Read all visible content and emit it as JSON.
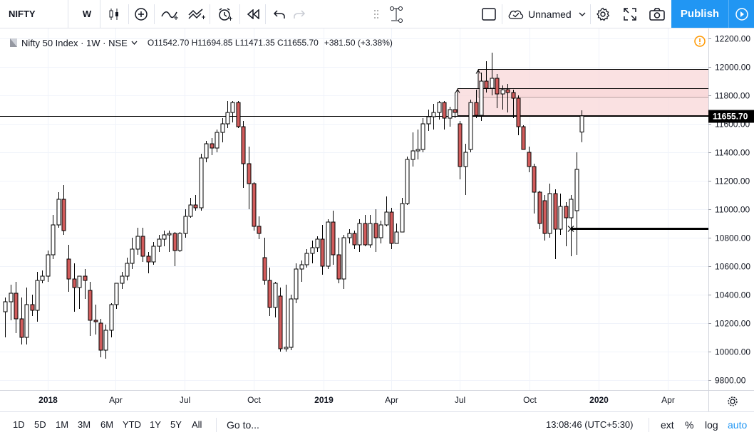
{
  "toolbar": {
    "symbol": "NIFTY",
    "interval": "W",
    "icons": [
      "candles-icon",
      "add-indicator-icon",
      "indicators-icon",
      "financials-icon",
      "alert-icon",
      "replay-icon",
      "undo-icon",
      "redo-icon",
      "drag-handle-icon",
      "drawing-tool-icon",
      "layout-icon",
      "cloud-icon",
      "dropdown-icon",
      "settings-icon",
      "fullscreen-icon",
      "camera-icon",
      "publish-arrow-icon"
    ],
    "layout_name": "Unnamed",
    "publish_label": "Publish"
  },
  "legend": {
    "title": "Nifty 50 Index · 1W · NSE",
    "ohlc": "O11542.70 H11694.85 L11471.35 C11655.70",
    "change": "+381.50 (+3.38%)",
    "warning_icon": "warning-icon"
  },
  "chart_data": {
    "type": "candlestick",
    "symbol": "Nifty 50 Index",
    "interval": "1W",
    "exchange": "NSE",
    "y_ticks": [
      12200,
      12000,
      11800,
      11600,
      11400,
      11200,
      11000,
      10800,
      10600,
      10400,
      10200,
      10000,
      9800
    ],
    "y_tick_labels": [
      "12200.00",
      "12000.00",
      "11800.00",
      "11600.00",
      "11400.00",
      "11200.00",
      "11000.00",
      "10800.00",
      "10600.00",
      "10400.00",
      "10200.00",
      "10000.00",
      "9800.00"
    ],
    "ylim": [
      9730,
      12270
    ],
    "x_tick_labels": [
      "2018",
      "Apr",
      "Jul",
      "Oct",
      "2019",
      "Apr",
      "Jul",
      "Oct",
      "2020",
      "Apr"
    ],
    "x_tick_dates": [
      "2018-01-01",
      "2018-04-01",
      "2018-07-01",
      "2018-10-01",
      "2019-01-01",
      "2019-04-01",
      "2019-07-01",
      "2019-10-01",
      "2020-01-01",
      "2020-04-01"
    ],
    "xlim": [
      "2017-10-30",
      "2020-05-25"
    ],
    "last_price": 11655.7,
    "last_price_label": "11655.70",
    "up_color": "#ffffff",
    "down_color": "#d15b5b",
    "wick_color": "#000000",
    "grid": true,
    "candles": [
      {
        "o": 10280,
        "h": 10380,
        "l": 10100,
        "c": 10350
      },
      {
        "o": 10350,
        "h": 10470,
        "l": 10220,
        "c": 10410
      },
      {
        "o": 10410,
        "h": 10490,
        "l": 10130,
        "c": 10230
      },
      {
        "o": 10230,
        "h": 10380,
        "l": 10050,
        "c": 10100
      },
      {
        "o": 10100,
        "h": 10450,
        "l": 10050,
        "c": 10330
      },
      {
        "o": 10330,
        "h": 10400,
        "l": 10250,
        "c": 10290
      },
      {
        "o": 10290,
        "h": 10560,
        "l": 10210,
        "c": 10500
      },
      {
        "o": 10500,
        "h": 10570,
        "l": 10480,
        "c": 10530
      },
      {
        "o": 10530,
        "h": 10710,
        "l": 10490,
        "c": 10680
      },
      {
        "o": 10680,
        "h": 10960,
        "l": 10650,
        "c": 10890
      },
      {
        "o": 10890,
        "h": 11120,
        "l": 10870,
        "c": 11070
      },
      {
        "o": 11070,
        "h": 11170,
        "l": 10820,
        "c": 10850
      },
      {
        "o": 10650,
        "h": 10750,
        "l": 10420,
        "c": 10510
      },
      {
        "o": 10510,
        "h": 10620,
        "l": 10280,
        "c": 10450
      },
      {
        "o": 10450,
        "h": 10530,
        "l": 10300,
        "c": 10530
      },
      {
        "o": 10530,
        "h": 10580,
        "l": 10370,
        "c": 10500
      },
      {
        "o": 10430,
        "h": 10490,
        "l": 10110,
        "c": 10220
      },
      {
        "o": 10220,
        "h": 10330,
        "l": 10120,
        "c": 10210
      },
      {
        "o": 10200,
        "h": 10230,
        "l": 9960,
        "c": 10010
      },
      {
        "o": 10010,
        "h": 10190,
        "l": 9950,
        "c": 10150
      },
      {
        "o": 10150,
        "h": 10340,
        "l": 10100,
        "c": 10330
      },
      {
        "o": 10330,
        "h": 10480,
        "l": 10300,
        "c": 10480
      },
      {
        "o": 10480,
        "h": 10560,
        "l": 10440,
        "c": 10530
      },
      {
        "o": 10530,
        "h": 10660,
        "l": 10500,
        "c": 10620
      },
      {
        "o": 10620,
        "h": 10800,
        "l": 10580,
        "c": 10720
      },
      {
        "o": 10720,
        "h": 10870,
        "l": 10680,
        "c": 10810
      },
      {
        "o": 10810,
        "h": 10870,
        "l": 10630,
        "c": 10670
      },
      {
        "o": 10670,
        "h": 10700,
        "l": 10550,
        "c": 10630
      },
      {
        "o": 10630,
        "h": 10770,
        "l": 10610,
        "c": 10740
      },
      {
        "o": 10740,
        "h": 10820,
        "l": 10700,
        "c": 10790
      },
      {
        "o": 10790,
        "h": 10850,
        "l": 10740,
        "c": 10820
      },
      {
        "o": 10820,
        "h": 10850,
        "l": 10700,
        "c": 10830
      },
      {
        "o": 10830,
        "h": 10840,
        "l": 10600,
        "c": 10710
      },
      {
        "o": 10710,
        "h": 10840,
        "l": 10700,
        "c": 10830
      },
      {
        "o": 10830,
        "h": 11000,
        "l": 10800,
        "c": 10950
      },
      {
        "o": 10950,
        "h": 11080,
        "l": 10940,
        "c": 11030
      },
      {
        "o": 11030,
        "h": 11100,
        "l": 10990,
        "c": 11010
      },
      {
        "o": 11010,
        "h": 11390,
        "l": 10990,
        "c": 11360
      },
      {
        "o": 11360,
        "h": 11480,
        "l": 11330,
        "c": 11460
      },
      {
        "o": 11460,
        "h": 11500,
        "l": 11380,
        "c": 11430
      },
      {
        "o": 11430,
        "h": 11560,
        "l": 11400,
        "c": 11540
      },
      {
        "o": 11540,
        "h": 11640,
        "l": 11470,
        "c": 11600
      },
      {
        "o": 11600,
        "h": 11760,
        "l": 11570,
        "c": 11680
      },
      {
        "o": 11680,
        "h": 11760,
        "l": 11610,
        "c": 11750
      },
      {
        "o": 11750,
        "h": 11760,
        "l": 11570,
        "c": 11580
      },
      {
        "o": 11580,
        "h": 11620,
        "l": 11150,
        "c": 11320
      },
      {
        "o": 11320,
        "h": 11440,
        "l": 11000,
        "c": 11180
      },
      {
        "o": 11180,
        "h": 11190,
        "l": 10850,
        "c": 10880
      },
      {
        "o": 10880,
        "h": 10950,
        "l": 10790,
        "c": 10830
      },
      {
        "o": 10660,
        "h": 10800,
        "l": 10470,
        "c": 10500
      },
      {
        "o": 10500,
        "h": 10590,
        "l": 10250,
        "c": 10310
      },
      {
        "o": 10310,
        "h": 10490,
        "l": 10240,
        "c": 10480
      },
      {
        "o": 10390,
        "h": 10450,
        "l": 10000,
        "c": 10020
      },
      {
        "o": 10020,
        "h": 10470,
        "l": 10000,
        "c": 10030
      },
      {
        "o": 10030,
        "h": 10400,
        "l": 10010,
        "c": 10370
      },
      {
        "o": 10370,
        "h": 10620,
        "l": 10340,
        "c": 10580
      },
      {
        "o": 10580,
        "h": 10640,
        "l": 10490,
        "c": 10610
      },
      {
        "o": 10610,
        "h": 10720,
        "l": 10590,
        "c": 10690
      },
      {
        "o": 10690,
        "h": 10780,
        "l": 10620,
        "c": 10730
      },
      {
        "o": 10730,
        "h": 10810,
        "l": 10700,
        "c": 10790
      },
      {
        "o": 10790,
        "h": 10890,
        "l": 10540,
        "c": 10600
      },
      {
        "o": 10600,
        "h": 10930,
        "l": 10580,
        "c": 10910
      },
      {
        "o": 10910,
        "h": 10990,
        "l": 10610,
        "c": 10680
      },
      {
        "o": 10680,
        "h": 10800,
        "l": 10480,
        "c": 10510
      },
      {
        "o": 10510,
        "h": 10820,
        "l": 10440,
        "c": 10800
      },
      {
        "o": 10800,
        "h": 10860,
        "l": 10760,
        "c": 10830
      },
      {
        "o": 10830,
        "h": 10850,
        "l": 10720,
        "c": 10750
      },
      {
        "o": 10750,
        "h": 10930,
        "l": 10700,
        "c": 10900
      },
      {
        "o": 10900,
        "h": 10960,
        "l": 10740,
        "c": 10750
      },
      {
        "o": 10750,
        "h": 10960,
        "l": 10730,
        "c": 10900
      },
      {
        "o": 10900,
        "h": 11000,
        "l": 10700,
        "c": 10800
      },
      {
        "o": 10800,
        "h": 10920,
        "l": 10760,
        "c": 10890
      },
      {
        "o": 10890,
        "h": 11090,
        "l": 10880,
        "c": 10980
      },
      {
        "o": 10980,
        "h": 11010,
        "l": 10720,
        "c": 10760
      },
      {
        "o": 10760,
        "h": 10900,
        "l": 10760,
        "c": 10840
      },
      {
        "o": 10840,
        "h": 11080,
        "l": 10840,
        "c": 11040
      },
      {
        "o": 11040,
        "h": 11370,
        "l": 11030,
        "c": 11350
      },
      {
        "o": 11350,
        "h": 11540,
        "l": 11300,
        "c": 11410
      },
      {
        "o": 11410,
        "h": 11560,
        "l": 11350,
        "c": 11420
      },
      {
        "o": 11420,
        "h": 11640,
        "l": 11400,
        "c": 11600
      },
      {
        "o": 11600,
        "h": 11700,
        "l": 11550,
        "c": 11650
      },
      {
        "o": 11650,
        "h": 11740,
        "l": 11560,
        "c": 11680
      },
      {
        "o": 11680,
        "h": 11760,
        "l": 11630,
        "c": 11750
      },
      {
        "o": 11750,
        "h": 11760,
        "l": 11560,
        "c": 11640
      },
      {
        "o": 11640,
        "h": 11720,
        "l": 11580,
        "c": 11700
      },
      {
        "o": 11700,
        "h": 11820,
        "l": 11640,
        "c": 11680
      },
      {
        "o": 11600,
        "h": 11620,
        "l": 11210,
        "c": 11300
      },
      {
        "o": 11300,
        "h": 11460,
        "l": 11100,
        "c": 11400
      },
      {
        "o": 11420,
        "h": 11770,
        "l": 11400,
        "c": 11750
      },
      {
        "o": 11750,
        "h": 11840,
        "l": 11640,
        "c": 11660
      },
      {
        "o": 11660,
        "h": 11960,
        "l": 11620,
        "c": 11900
      },
      {
        "o": 11900,
        "h": 12040,
        "l": 11820,
        "c": 11850
      },
      {
        "o": 11850,
        "h": 12100,
        "l": 11800,
        "c": 11920
      },
      {
        "o": 11920,
        "h": 11950,
        "l": 11710,
        "c": 11810
      },
      {
        "o": 11810,
        "h": 11870,
        "l": 11700,
        "c": 11840
      },
      {
        "o": 11840,
        "h": 11880,
        "l": 11680,
        "c": 11820
      },
      {
        "o": 11820,
        "h": 11840,
        "l": 11640,
        "c": 11780
      },
      {
        "o": 11780,
        "h": 11800,
        "l": 11520,
        "c": 11580
      },
      {
        "o": 11580,
        "h": 11590,
        "l": 11420,
        "c": 11420
      },
      {
        "o": 11400,
        "h": 11440,
        "l": 11260,
        "c": 11300
      },
      {
        "o": 11300,
        "h": 11320,
        "l": 10970,
        "c": 11120
      },
      {
        "o": 11120,
        "h": 11130,
        "l": 10860,
        "c": 10900
      },
      {
        "o": 11060,
        "h": 11100,
        "l": 10780,
        "c": 10830
      },
      {
        "o": 10830,
        "h": 11180,
        "l": 10800,
        "c": 11110
      },
      {
        "o": 11110,
        "h": 11140,
        "l": 10650,
        "c": 10860
      },
      {
        "o": 10860,
        "h": 11110,
        "l": 10820,
        "c": 11020
      },
      {
        "o": 11020,
        "h": 11050,
        "l": 10740,
        "c": 10940
      },
      {
        "o": 10940,
        "h": 11100,
        "l": 10670,
        "c": 11070
      },
      {
        "o": 10990,
        "h": 11400,
        "l": 10680,
        "c": 11280
      },
      {
        "o": 11542.7,
        "h": 11694.85,
        "l": 11471.35,
        "c": 11655.7
      }
    ],
    "zones": [
      {
        "type": "supply",
        "top": 11985,
        "bottom": 11790,
        "color": "#f8d7d8"
      },
      {
        "type": "supply",
        "top": 11850,
        "bottom": 11660,
        "color": "#f8d7d8"
      }
    ],
    "support_level": 10865
  },
  "range_buttons": [
    "1D",
    "5D",
    "1M",
    "3M",
    "6M",
    "YTD",
    "1Y",
    "5Y",
    "All"
  ],
  "goto_label": "Go to...",
  "clock": "13:08:46 (UTC+5:30)",
  "bottom_options": [
    "ext",
    "%",
    "log",
    "auto"
  ],
  "colors": {
    "accent": "#2196f3",
    "down_candle": "#d15b5b",
    "zone": "#f8d7d8",
    "warning": "#ff9800"
  }
}
